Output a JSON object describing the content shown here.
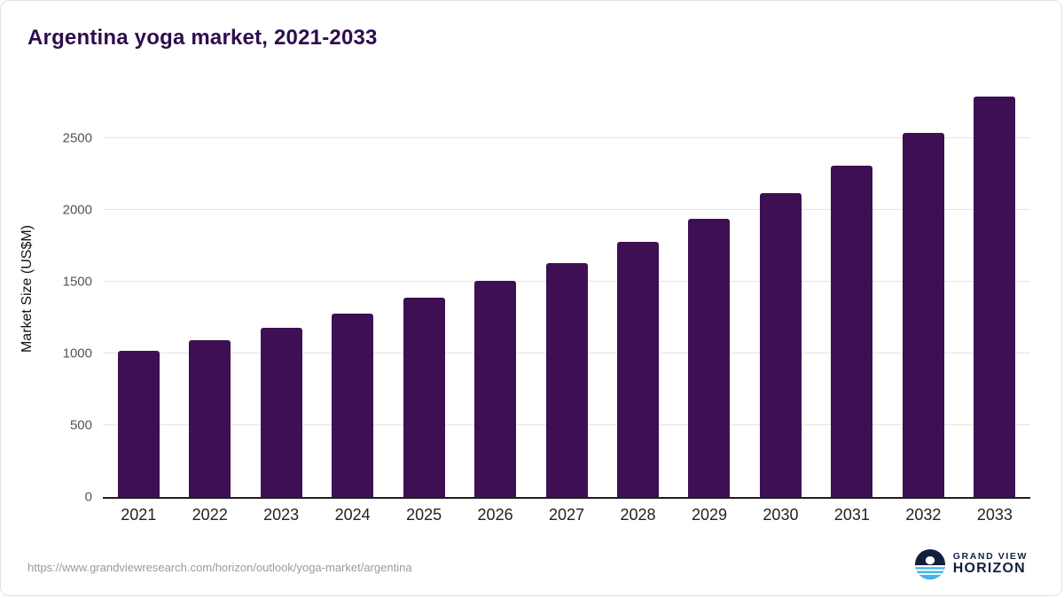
{
  "title": "Argentina yoga market, 2021-2033",
  "footer": {
    "source_url": "https://www.grandviewresearch.com/horizon/outlook/yoga-market/argentina",
    "brand_line1": "GRAND VIEW",
    "brand_line2": "HORIZON"
  },
  "colors": {
    "bar": "#3e1053",
    "title": "#2f0d4d",
    "grid": "#e4e4e4",
    "axis": "#1f1f1f",
    "brand_navy": "#12203f",
    "brand_blue": "#45b5e8"
  },
  "chart_data": {
    "type": "bar",
    "title": "Argentina yoga market, 2021-2033",
    "categories": [
      "2021",
      "2022",
      "2023",
      "2024",
      "2025",
      "2026",
      "2027",
      "2028",
      "2029",
      "2030",
      "2031",
      "2032",
      "2033"
    ],
    "values": [
      1020,
      1095,
      1180,
      1280,
      1390,
      1505,
      1630,
      1775,
      1940,
      2115,
      2310,
      2535,
      2790
    ],
    "xlabel": "",
    "ylabel": "Market Size (US$M)",
    "ylim": [
      0,
      2900
    ],
    "yticks": [
      0,
      500,
      1000,
      1500,
      2000,
      2500
    ],
    "grid": true,
    "legend": false,
    "bar_color": "#3e1053"
  }
}
